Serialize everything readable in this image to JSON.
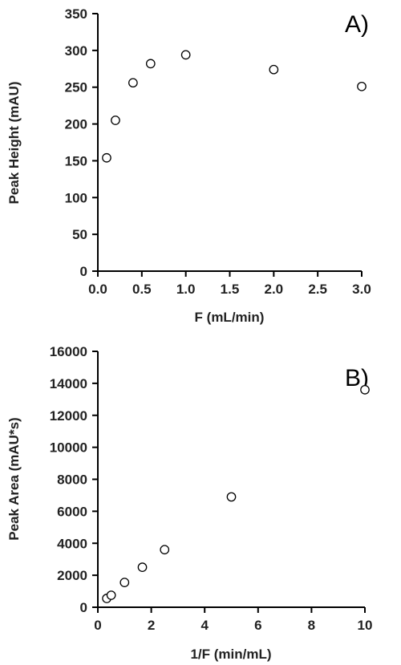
{
  "chart_data": [
    {
      "type": "scatter",
      "panel_label": "A)",
      "xlabel": "F (mL/min)",
      "ylabel": "Peak Height (mAU)",
      "xlim": [
        0,
        3
      ],
      "ylim": [
        0,
        350
      ],
      "xticks": [
        "0.0",
        "0.5",
        "1.0",
        "1.5",
        "2.0",
        "2.5",
        "3.0"
      ],
      "yticks": [
        "0",
        "50",
        "100",
        "150",
        "200",
        "250",
        "300",
        "350"
      ],
      "grid": false,
      "marker": "open-circle",
      "x": [
        0.1,
        0.2,
        0.4,
        0.6,
        1.0,
        2.0,
        3.0
      ],
      "y": [
        154,
        205,
        256,
        282,
        294,
        274,
        251
      ]
    },
    {
      "type": "scatter",
      "panel_label": "B)",
      "xlabel": "1/F (min/mL)",
      "ylabel": "Peak Area (mAU*s)",
      "xlim": [
        0,
        10
      ],
      "ylim": [
        0,
        16000
      ],
      "xticks": [
        "0",
        "2",
        "4",
        "6",
        "8",
        "10"
      ],
      "yticks": [
        "0",
        "2000",
        "4000",
        "6000",
        "8000",
        "10000",
        "12000",
        "14000",
        "16000"
      ],
      "grid": false,
      "marker": "open-circle",
      "x": [
        0.333,
        0.5,
        1.0,
        1.667,
        2.5,
        5.0,
        10.0
      ],
      "y": [
        550,
        750,
        1550,
        2500,
        3600,
        6900,
        13600
      ]
    }
  ]
}
